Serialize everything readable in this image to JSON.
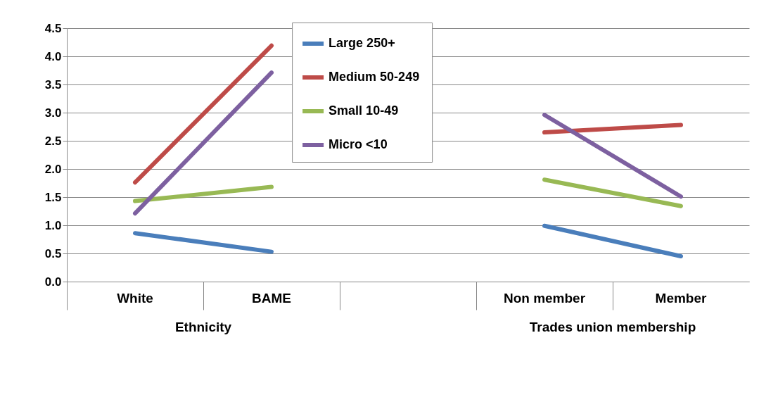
{
  "chart_data": {
    "type": "line",
    "categories": [
      "White",
      "BAME",
      null,
      "Non member",
      "Member"
    ],
    "series": [
      {
        "name": "Large 250+",
        "color": "#4a7ebb",
        "values": [
          0.86,
          0.53,
          null,
          0.99,
          0.45
        ]
      },
      {
        "name": "Medium  50-249",
        "color": "#be4b48",
        "values": [
          1.76,
          4.19,
          null,
          2.65,
          2.78
        ]
      },
      {
        "name": "Small 10-49",
        "color": "#98b954",
        "values": [
          1.43,
          1.68,
          null,
          1.81,
          1.34
        ]
      },
      {
        "name": "Micro <10",
        "color": "#7d60a0",
        "values": [
          1.21,
          3.71,
          null,
          2.96,
          1.51
        ]
      }
    ],
    "annotations": [
      "Ethnicity",
      "Trades union membership"
    ],
    "ylim": [
      0,
      4.5
    ],
    "yticks": [
      {
        "value": 0,
        "label": "0.0"
      },
      0.5,
      {
        "value": 1,
        "label": "1.0"
      },
      1.5,
      {
        "value": 2,
        "label": "2.0"
      },
      2.5,
      {
        "value": 3,
        "label": "3.0"
      },
      3.5,
      {
        "value": 4,
        "label": "4.0"
      },
      4.5
    ],
    "grid": "y",
    "legend": "top",
    "marker": "none",
    "line_style": "solid"
  }
}
